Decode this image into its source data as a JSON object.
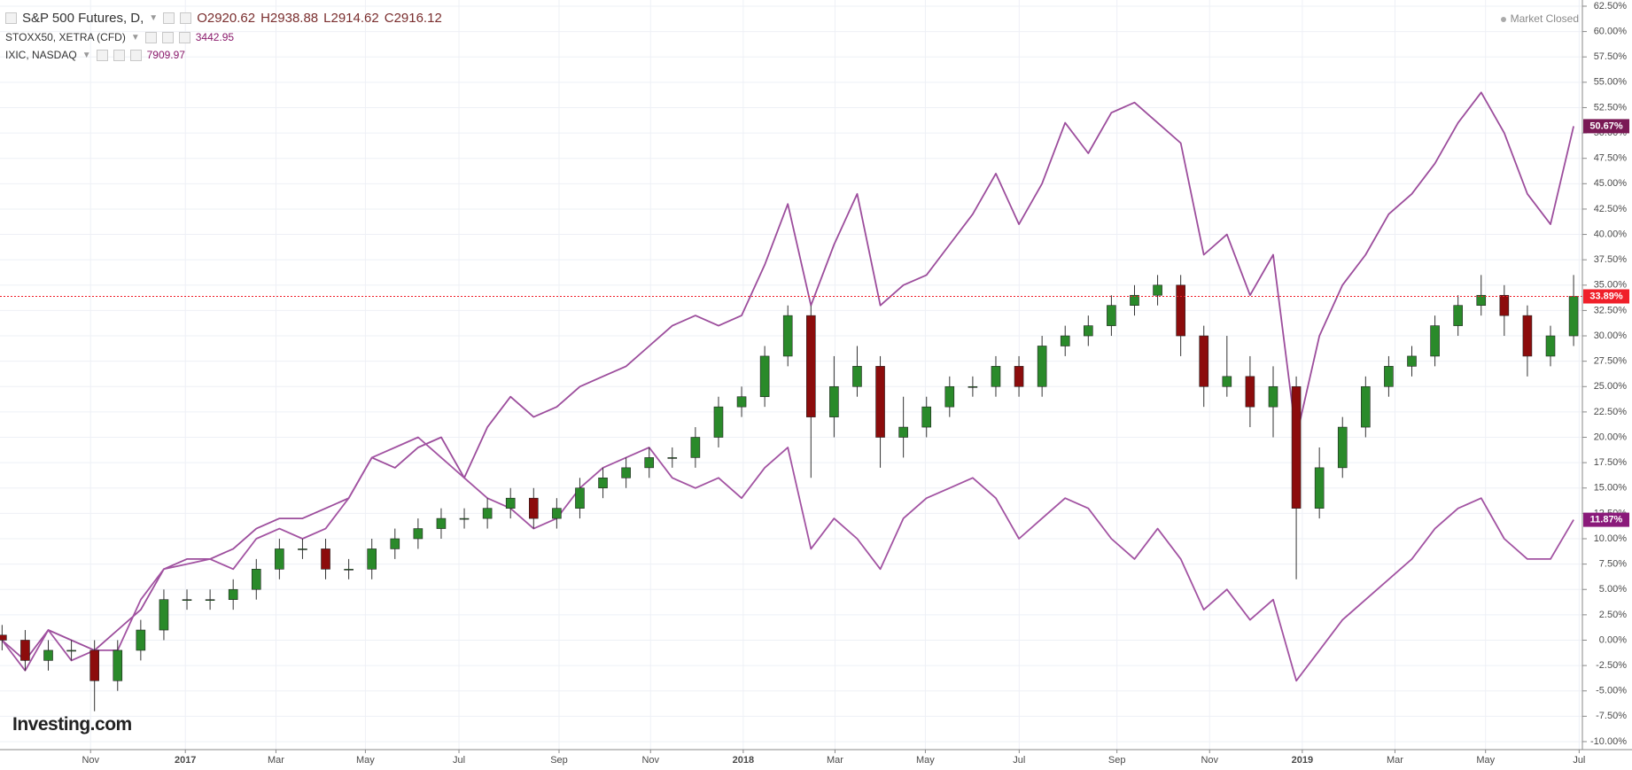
{
  "chart_data": {
    "type": "candlestick",
    "header": {
      "ohlc": [
        "O2920.62",
        "H2938.88",
        "L2914.62",
        "C2916.12"
      ],
      "status": "Market Closed",
      "watermark": "Investing.com"
    },
    "xlim": [
      -0.09,
      68.38
    ],
    "xticks": [
      {
        "value": 3.83,
        "label": "Nov"
      },
      {
        "value": 7.93,
        "label": "2017"
      },
      {
        "value": 11.85,
        "label": "Mar"
      },
      {
        "value": 15.72,
        "label": "May"
      },
      {
        "value": 19.77,
        "label": "Jul"
      },
      {
        "value": 24.1,
        "label": "Sep"
      },
      {
        "value": 28.06,
        "label": "Nov"
      },
      {
        "value": 32.07,
        "label": "2018"
      },
      {
        "value": 36.04,
        "label": "Mar"
      },
      {
        "value": 39.95,
        "label": "May"
      },
      {
        "value": 44.01,
        "label": "Jul"
      },
      {
        "value": 48.24,
        "label": "Sep"
      },
      {
        "value": 52.25,
        "label": "Nov"
      },
      {
        "value": 56.26,
        "label": "2019"
      },
      {
        "value": 60.27,
        "label": "Mar"
      },
      {
        "value": 64.19,
        "label": "May"
      },
      {
        "value": 68.24,
        "label": "Jul"
      }
    ],
    "ylim": [
      -10.79,
      63.11
    ],
    "yticks": [
      {
        "value": 62.5,
        "label": "62.50%"
      },
      {
        "value": 60,
        "label": "60.00%"
      },
      {
        "value": 57.5,
        "label": "57.50%"
      },
      {
        "value": 55,
        "label": "55.00%"
      },
      {
        "value": 52.5,
        "label": "52.50%"
      },
      {
        "value": 50,
        "label": "50.00%"
      },
      {
        "value": 47.5,
        "label": "47.50%"
      },
      {
        "value": 45,
        "label": "45.00%"
      },
      {
        "value": 42.5,
        "label": "42.50%"
      },
      {
        "value": 40,
        "label": "40.00%"
      },
      {
        "value": 37.5,
        "label": "37.50%"
      },
      {
        "value": 35,
        "label": "35.00%"
      },
      {
        "value": 32.5,
        "label": "32.50%"
      },
      {
        "value": 30,
        "label": "30.00%"
      },
      {
        "value": 27.5,
        "label": "27.50%"
      },
      {
        "value": 25,
        "label": "25.00%"
      },
      {
        "value": 22.5,
        "label": "22.50%"
      },
      {
        "value": 20,
        "label": "20.00%"
      },
      {
        "value": 17.5,
        "label": "17.50%"
      },
      {
        "value": 15,
        "label": "15.00%"
      },
      {
        "value": 12.5,
        "label": "12.50%"
      },
      {
        "value": 10,
        "label": "10.00%"
      },
      {
        "value": 7.5,
        "label": "7.50%"
      },
      {
        "value": 5,
        "label": "5.00%"
      },
      {
        "value": 2.5,
        "label": "2.50%"
      },
      {
        "value": 0,
        "label": "0.00%"
      },
      {
        "value": -2.5,
        "label": "-2.50%"
      },
      {
        "value": -5,
        "label": "-5.00%"
      },
      {
        "value": -7.5,
        "label": "-7.50%"
      },
      {
        "value": -10,
        "label": "-10.00%"
      }
    ],
    "grid": true,
    "series": [
      {
        "name": "S&P 500 Futures, D,",
        "type": "candlestick",
        "up_color": "#2a8a2a",
        "down_color": "#8c0c0c",
        "label_color": "#f0202a",
        "open": [
          0.5,
          0,
          -2,
          -1,
          -1,
          -4,
          -1,
          1,
          4,
          4,
          4,
          5,
          7,
          9,
          9,
          7,
          7,
          9,
          10,
          11,
          12,
          12,
          13,
          14,
          12,
          13,
          15,
          16,
          17,
          18,
          18,
          20,
          23,
          24,
          28,
          32,
          22,
          25,
          27,
          20,
          21,
          23,
          25,
          25,
          27,
          25,
          29,
          30,
          31,
          33,
          34,
          35,
          30,
          25,
          26,
          23,
          25,
          13,
          17,
          21,
          25,
          27,
          28,
          31,
          33,
          34,
          32,
          28,
          30
        ],
        "high": [
          1.5,
          1,
          0,
          0,
          0,
          0,
          2,
          5,
          5,
          5,
          6,
          8,
          10,
          10,
          10,
          8,
          10,
          11,
          12,
          13,
          13,
          14,
          15,
          15,
          14,
          16,
          17,
          18,
          19,
          19,
          21,
          24,
          25,
          29,
          33,
          33,
          28,
          29,
          28,
          24,
          24,
          26,
          26,
          28,
          28,
          30,
          31,
          32,
          34,
          35,
          36,
          36,
          31,
          30,
          28,
          27,
          26,
          19,
          22,
          26,
          28,
          29,
          32,
          34,
          36,
          35,
          33,
          31,
          36
        ],
        "low": [
          -1,
          -3,
          -3,
          -2,
          -7,
          -5,
          -2,
          0,
          3,
          3,
          3,
          4,
          6,
          8,
          6,
          6,
          6,
          8,
          9,
          10,
          11,
          11,
          12,
          11,
          11,
          12,
          14,
          15,
          16,
          17,
          17,
          19,
          22,
          23,
          27,
          16,
          20,
          24,
          17,
          18,
          20,
          22,
          24,
          24,
          24,
          24,
          28,
          29,
          30,
          32,
          33,
          28,
          23,
          24,
          21,
          20,
          6,
          12,
          16,
          20,
          24,
          26,
          27,
          30,
          32,
          30,
          26,
          27,
          29
        ],
        "close": [
          0,
          -2,
          -1,
          -1,
          -4,
          -1,
          1,
          4,
          4,
          4,
          5,
          7,
          9,
          9,
          7,
          7,
          9,
          10,
          11,
          12,
          12,
          13,
          14,
          12,
          13,
          15,
          16,
          17,
          18,
          18,
          20,
          23,
          24,
          28,
          32,
          22,
          25,
          27,
          20,
          21,
          23,
          25,
          25,
          27,
          25,
          29,
          30,
          31,
          33,
          34,
          35,
          30,
          25,
          26,
          23,
          25,
          13,
          17,
          21,
          25,
          27,
          28,
          31,
          33,
          34,
          32,
          28,
          30,
          33.89
        ],
        "value_labels": [
          null,
          null,
          null,
          null,
          null,
          null,
          null,
          null,
          null,
          null,
          null,
          null,
          null,
          null,
          null,
          null,
          null,
          null,
          null,
          null,
          null,
          null,
          null,
          null,
          null,
          null,
          null,
          null,
          null,
          null,
          null,
          null,
          null,
          null,
          null,
          null,
          null,
          null,
          null,
          null,
          null,
          null,
          null,
          null,
          null,
          null,
          null,
          null,
          null,
          null,
          null,
          null,
          null,
          null,
          null,
          null,
          null,
          null,
          null,
          null,
          null,
          null,
          null,
          null,
          null,
          null,
          null,
          null,
          "33.89%"
        ]
      },
      {
        "name": "STOXX50, XETRA (CFD)",
        "type": "line",
        "quote": "3442.95",
        "color": "#a253a2",
        "label_color": "#8a1a7a",
        "values": [
          0,
          -3,
          1,
          -2,
          -1,
          -1,
          4,
          7,
          7.5,
          8,
          7,
          10,
          11,
          10,
          11,
          14,
          18,
          19,
          20,
          18,
          16,
          14,
          13,
          11,
          12,
          15,
          17,
          18,
          19,
          16,
          15,
          16,
          14,
          17,
          19,
          9,
          12,
          10,
          7,
          12,
          14,
          15,
          16,
          14,
          10,
          12,
          14,
          13,
          10,
          8,
          11,
          8,
          3,
          5,
          2,
          4,
          -4,
          -1,
          2,
          4,
          6,
          8,
          11,
          13,
          14,
          10,
          8,
          8,
          11.87
        ],
        "value_labels": [
          null,
          null,
          null,
          null,
          null,
          null,
          null,
          null,
          null,
          null,
          null,
          null,
          null,
          null,
          null,
          null,
          null,
          null,
          null,
          null,
          null,
          null,
          null,
          null,
          null,
          null,
          null,
          null,
          null,
          null,
          null,
          null,
          null,
          null,
          null,
          null,
          null,
          null,
          null,
          null,
          null,
          null,
          null,
          null,
          null,
          null,
          null,
          null,
          null,
          null,
          null,
          null,
          null,
          null,
          null,
          null,
          null,
          null,
          null,
          null,
          null,
          null,
          null,
          null,
          null,
          null,
          null,
          null,
          "11.87%"
        ]
      },
      {
        "name": "IXIC, NASDAQ",
        "type": "line",
        "quote": "7909.97",
        "color": "#9c4d9c",
        "label_color": "#7a1a55",
        "values": [
          0,
          -2,
          1,
          0,
          -1,
          1,
          3,
          7,
          8,
          8,
          9,
          11,
          12,
          12,
          13,
          14,
          18,
          17,
          19,
          20,
          16,
          21,
          24,
          22,
          23,
          25,
          26,
          27,
          29,
          31,
          32,
          31,
          32,
          37,
          43,
          33,
          39,
          44,
          33,
          35,
          36,
          39,
          42,
          46,
          41,
          45,
          51,
          48,
          52,
          53,
          51,
          49,
          38,
          40,
          34,
          38,
          20,
          30,
          35,
          38,
          42,
          44,
          47,
          51,
          54,
          50,
          44,
          41,
          50.67
        ],
        "value_labels": [
          null,
          null,
          null,
          null,
          null,
          null,
          null,
          null,
          null,
          null,
          null,
          null,
          null,
          null,
          null,
          null,
          null,
          null,
          null,
          null,
          null,
          null,
          null,
          null,
          null,
          null,
          null,
          null,
          null,
          null,
          null,
          null,
          null,
          null,
          null,
          null,
          null,
          null,
          null,
          null,
          null,
          null,
          null,
          null,
          null,
          null,
          null,
          null,
          null,
          null,
          null,
          null,
          null,
          null,
          null,
          null,
          null,
          null,
          null,
          null,
          null,
          null,
          null,
          null,
          null,
          null,
          null,
          null,
          "50.67%"
        ]
      }
    ]
  }
}
